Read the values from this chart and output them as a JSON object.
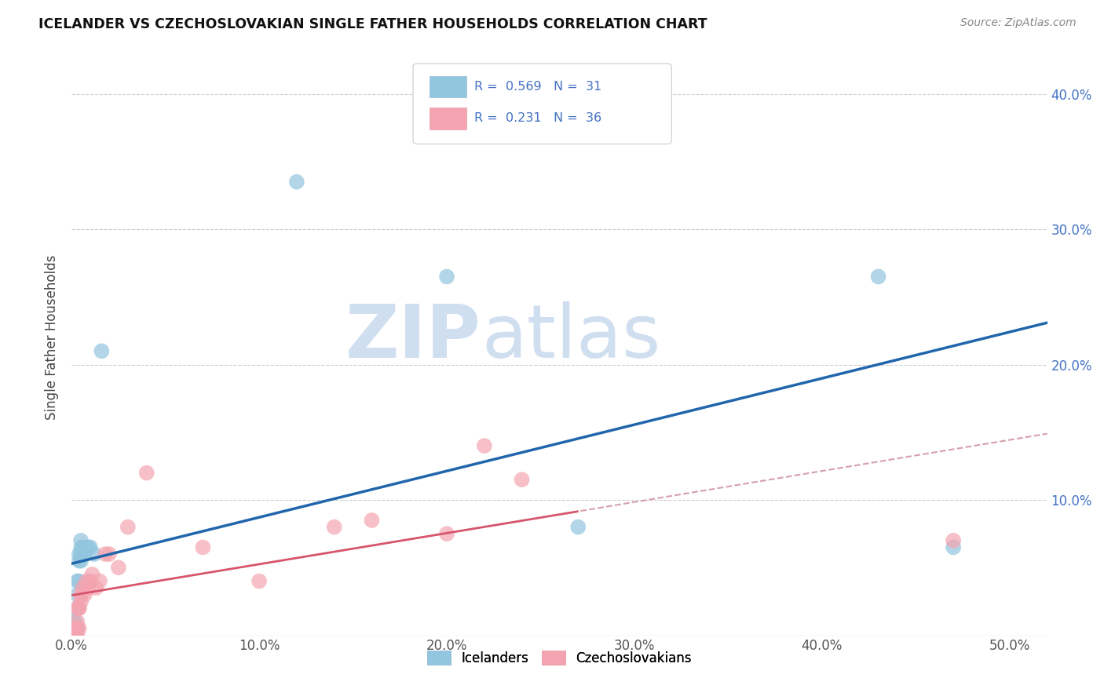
{
  "title": "ICELANDER VS CZECHOSLOVAKIAN SINGLE FATHER HOUSEHOLDS CORRELATION CHART",
  "source": "Source: ZipAtlas.com",
  "ylabel": "Single Father Households",
  "icelanders_color": "#92c5de",
  "czechoslovakians_color": "#f4a4b0",
  "blue_line_color": "#2166ac",
  "pink_line_color": "#d6556d",
  "pink_dashed_color": "#d6a0aa",
  "watermark_zip": "ZIP",
  "watermark_atlas": "atlas",
  "watermark_color": "#d0dff0",
  "icelanders_x": [
    0.001,
    0.001,
    0.001,
    0.002,
    0.002,
    0.002,
    0.002,
    0.003,
    0.003,
    0.003,
    0.003,
    0.004,
    0.004,
    0.004,
    0.005,
    0.005,
    0.005,
    0.005,
    0.006,
    0.006,
    0.007,
    0.008,
    0.009,
    0.01,
    0.012,
    0.016,
    0.12,
    0.2,
    0.27,
    0.43,
    0.47
  ],
  "icelanders_y": [
    0.005,
    0.01,
    0.0,
    0.005,
    0.005,
    0.01,
    0.0,
    0.02,
    0.03,
    0.04,
    0.005,
    0.04,
    0.055,
    0.06,
    0.055,
    0.06,
    0.065,
    0.07,
    0.06,
    0.065,
    0.06,
    0.065,
    0.065,
    0.065,
    0.06,
    0.21,
    0.335,
    0.265,
    0.08,
    0.265,
    0.065
  ],
  "czechoslovakians_x": [
    0.001,
    0.001,
    0.001,
    0.001,
    0.002,
    0.002,
    0.003,
    0.003,
    0.003,
    0.003,
    0.004,
    0.004,
    0.004,
    0.005,
    0.005,
    0.006,
    0.007,
    0.008,
    0.009,
    0.01,
    0.011,
    0.013,
    0.015,
    0.018,
    0.02,
    0.025,
    0.03,
    0.04,
    0.07,
    0.1,
    0.14,
    0.16,
    0.2,
    0.22,
    0.24,
    0.47
  ],
  "czechoslovakians_y": [
    0.005,
    0.005,
    0.0,
    0.0,
    0.005,
    0.0,
    0.005,
    0.01,
    0.02,
    0.0,
    0.005,
    0.02,
    0.02,
    0.03,
    0.025,
    0.035,
    0.03,
    0.04,
    0.035,
    0.04,
    0.045,
    0.035,
    0.04,
    0.06,
    0.06,
    0.05,
    0.08,
    0.12,
    0.065,
    0.04,
    0.08,
    0.085,
    0.075,
    0.14,
    0.115,
    0.07
  ],
  "xlim": [
    0.0,
    0.52
  ],
  "ylim": [
    0.0,
    0.44
  ],
  "x_tick_vals": [
    0.0,
    0.1,
    0.2,
    0.3,
    0.4,
    0.5
  ],
  "x_tick_labels": [
    "0.0%",
    "10.0%",
    "20.0%",
    "30.0%",
    "40.0%",
    "50.0%"
  ],
  "y_tick_vals": [
    0.0,
    0.1,
    0.2,
    0.3,
    0.4
  ],
  "y_tick_labels": [
    "",
    "10.0%",
    "20.0%",
    "30.0%",
    "40.0%"
  ]
}
